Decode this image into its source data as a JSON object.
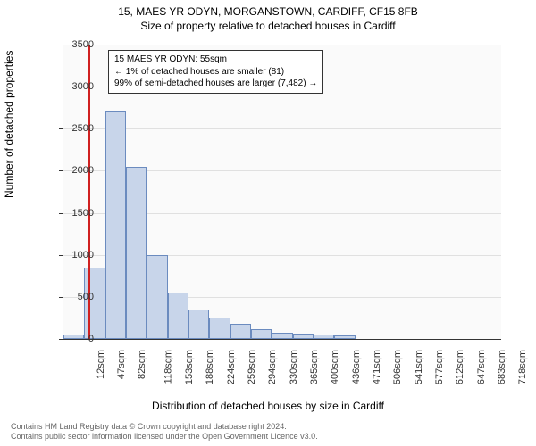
{
  "title": "15, MAES YR ODYN, MORGANSTOWN, CARDIFF, CF15 8FB",
  "subtitle": "Size of property relative to detached houses in Cardiff",
  "chart": {
    "type": "histogram",
    "background_color": "#fafafa",
    "bar_fill": "#c8d5ea",
    "bar_border": "#6b8bbf",
    "grid_color": "#e0e0e0",
    "ref_line_color": "#d02020",
    "ylim": [
      0,
      3500
    ],
    "ytick_step": 500,
    "y_ticks": [
      0,
      500,
      1000,
      1500,
      2000,
      2500,
      3000,
      3500
    ],
    "x_labels": [
      "12sqm",
      "47sqm",
      "82sqm",
      "118sqm",
      "153sqm",
      "188sqm",
      "224sqm",
      "259sqm",
      "294sqm",
      "330sqm",
      "365sqm",
      "400sqm",
      "436sqm",
      "471sqm",
      "506sqm",
      "541sqm",
      "577sqm",
      "612sqm",
      "647sqm",
      "683sqm",
      "718sqm"
    ],
    "bars": [
      50,
      850,
      2700,
      2050,
      1000,
      550,
      350,
      260,
      180,
      120,
      70,
      60,
      50,
      40,
      0,
      0,
      0,
      0,
      0,
      0,
      0
    ],
    "ref_line_pos": 1.22,
    "y_axis_label": "Number of detached properties",
    "x_axis_label": "Distribution of detached houses by size in Cardiff"
  },
  "info_box": {
    "line1": "15 MAES YR ODYN: 55sqm",
    "line2": "← 1% of detached houses are smaller (81)",
    "line3": "99% of semi-detached houses are larger (7,482) →"
  },
  "footer": {
    "line1": "Contains HM Land Registry data © Crown copyright and database right 2024.",
    "line2": "Contains public sector information licensed under the Open Government Licence v3.0."
  }
}
